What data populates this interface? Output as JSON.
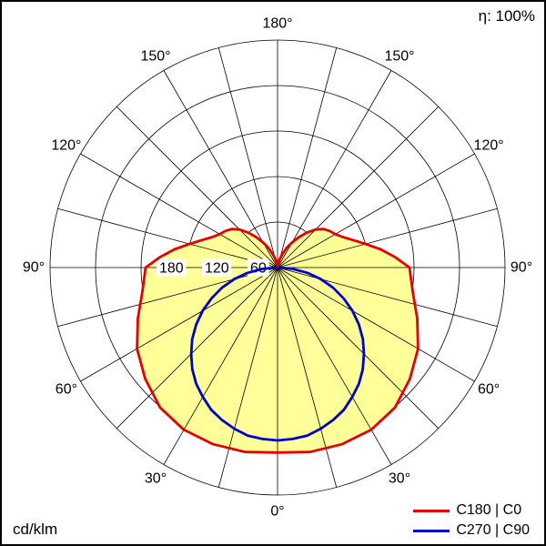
{
  "eta_label": "η: 100%",
  "unit_label": "cd/klm",
  "legend": {
    "items": [
      {
        "label": "C180 | C0"
      },
      {
        "label": "C270 | C90"
      }
    ]
  },
  "chart_data": {
    "type": "line",
    "subtype": "polar-photometric-intensity-distribution",
    "title": "",
    "units": "cd/klm",
    "eta": "100%",
    "legend_position": "bottom-right",
    "angle_axis": {
      "zero_direction": "down",
      "ticks_deg": [
        0,
        30,
        60,
        90,
        120,
        150,
        180
      ],
      "tick_labels": [
        "0°",
        "30°",
        "60°",
        "90°",
        "120°",
        "150°",
        "180°"
      ],
      "grid_step_deg": 15
    },
    "radial_axis": {
      "ticks": [
        60,
        120,
        180
      ],
      "max": 300,
      "grid_step": 60,
      "unit": "cd/klm"
    },
    "series": [
      {
        "name": "C180 | C0",
        "color": "#e60000",
        "fill": "#ffff99",
        "symmetric": true,
        "points_deg_cd": [
          [
            0,
            244
          ],
          [
            10,
            247
          ],
          [
            20,
            248
          ],
          [
            30,
            247
          ],
          [
            40,
            241
          ],
          [
            50,
            228
          ],
          [
            60,
            214
          ],
          [
            70,
            196
          ],
          [
            80,
            181
          ],
          [
            90,
            174
          ],
          [
            95,
            156
          ],
          [
            100,
            138
          ],
          [
            105,
            120
          ],
          [
            110,
            106
          ],
          [
            115,
            95
          ],
          [
            120,
            88
          ],
          [
            125,
            84
          ],
          [
            130,
            79
          ],
          [
            135,
            71
          ],
          [
            140,
            60
          ],
          [
            145,
            49
          ],
          [
            150,
            38
          ],
          [
            155,
            29
          ],
          [
            160,
            19
          ],
          [
            165,
            12
          ],
          [
            170,
            6
          ],
          [
            175,
            4
          ],
          [
            180,
            2
          ]
        ]
      },
      {
        "name": "C270 | C90",
        "color": "#0000cc",
        "fill": null,
        "symmetric": true,
        "points_deg_cd": [
          [
            0,
            228
          ],
          [
            5,
            227
          ],
          [
            10,
            225
          ],
          [
            15,
            220
          ],
          [
            20,
            214
          ],
          [
            25,
            207
          ],
          [
            30,
            197
          ],
          [
            35,
            187
          ],
          [
            40,
            175
          ],
          [
            45,
            161
          ],
          [
            50,
            147
          ],
          [
            55,
            131
          ],
          [
            60,
            114
          ],
          [
            65,
            96
          ],
          [
            70,
            78
          ],
          [
            75,
            59
          ],
          [
            80,
            40
          ],
          [
            85,
            20
          ],
          [
            90,
            2
          ]
        ]
      }
    ]
  }
}
